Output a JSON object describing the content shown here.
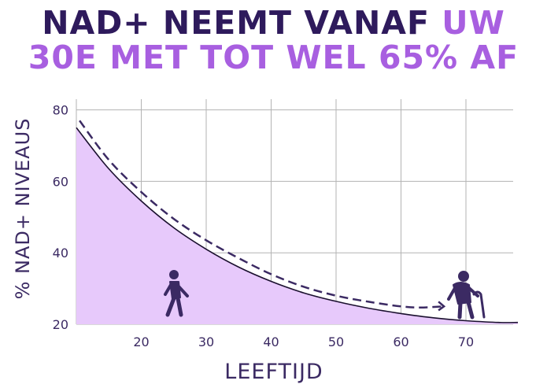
{
  "title": {
    "line1_part1": "NAD+ NEEMT VANAF ",
    "line1_part2": "UW",
    "line2": "30E MET TOT WEL 65% AF"
  },
  "colors": {
    "title_dark": "#2e1a5c",
    "title_accent": "#a85fe0",
    "area_fill": "#e7c9fb",
    "line": "#1a0f2e",
    "dashed": "#3b2a63",
    "icons": "#3b2a63",
    "grid": "#b3b3b3",
    "axis_text": "#3b2a63"
  },
  "icons": {
    "left": "walking-person-icon",
    "right": "elderly-person-with-cane-icon"
  },
  "chart_data": {
    "type": "area",
    "title": "NAD+ NEEMT VANAF UW 30E MET TOT WEL 65% AF",
    "xlabel": "LEEFTIJD",
    "ylabel": "% NAD+ NIVEAUS",
    "xlim": [
      10,
      78
    ],
    "ylim": [
      20,
      83
    ],
    "xticks": [
      20,
      30,
      40,
      50,
      60,
      70
    ],
    "yticks": [
      20,
      40,
      60,
      80
    ],
    "grid": "horizontal and vertical",
    "series": [
      {
        "style": "solid line with filled area",
        "x": [
          10,
          15,
          20,
          25,
          30,
          35,
          40,
          45,
          50,
          55,
          60,
          65,
          70,
          75,
          78
        ],
        "y": [
          75,
          63.5,
          54.5,
          47,
          41,
          36,
          32,
          28.8,
          26.4,
          24.5,
          23,
          21.8,
          21,
          20.5,
          20.5
        ]
      },
      {
        "style": "dashed arrow",
        "x": [
          10.5,
          15,
          20,
          25,
          30,
          35,
          40,
          45,
          50,
          55,
          60,
          63,
          66.5
        ],
        "y": [
          77,
          66,
          57,
          49.5,
          43.5,
          38.5,
          34,
          30.5,
          28,
          26.3,
          25,
          24.7,
          25
        ]
      }
    ]
  }
}
